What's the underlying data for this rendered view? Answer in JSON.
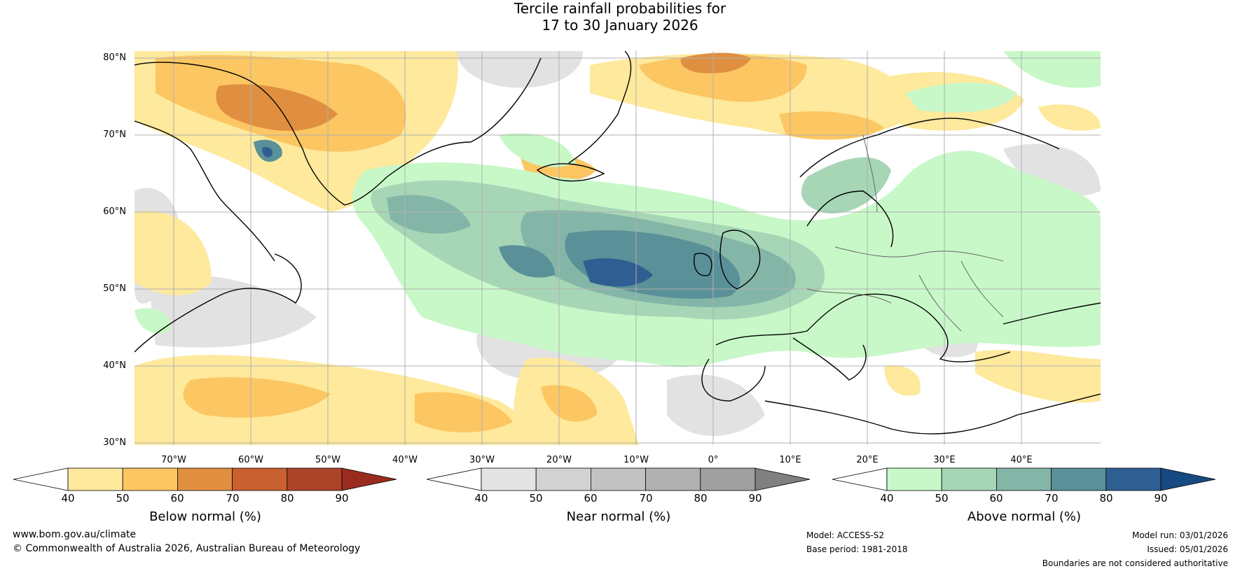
{
  "title": {
    "line1": "Tercile rainfall probabilities for",
    "line2": "17 to 30 January 2026"
  },
  "map": {
    "lat_labels": [
      "80°N",
      "70°N",
      "60°N",
      "50°N",
      "40°N",
      "30°N"
    ],
    "lon_labels": [
      "70°W",
      "60°W",
      "50°W",
      "40°W",
      "30°W",
      "20°W",
      "10°W",
      "0°",
      "10°E",
      "20°E",
      "30°E",
      "40°E"
    ]
  },
  "colorbars": [
    {
      "label": "Below normal (%)",
      "ticks": [
        "40",
        "50",
        "60",
        "70",
        "80",
        "90"
      ],
      "colors": [
        "#ffffff",
        "#fee99c",
        "#fcc662",
        "#e08f40",
        "#c8602f",
        "#ab4428",
        "#992c1e"
      ]
    },
    {
      "label": "Near normal (%)",
      "ticks": [
        "40",
        "50",
        "60",
        "70",
        "80",
        "90"
      ],
      "colors": [
        "#ffffff",
        "#e4e4e4",
        "#d2d2d2",
        "#c2c2c2",
        "#b1b1b1",
        "#a0a0a0",
        "#808080"
      ]
    },
    {
      "label": "Above normal (%)",
      "ticks": [
        "40",
        "50",
        "60",
        "70",
        "80",
        "90"
      ],
      "colors": [
        "#ffffff",
        "#c8f8c8",
        "#a6d6b6",
        "#84b6a8",
        "#5a9198",
        "#2f5f92",
        "#174a80"
      ]
    }
  ],
  "footer": {
    "url": "www.bom.gov.au/climate",
    "copyright": "© Commonwealth of Australia 2026, Australian Bureau of Meteorology",
    "model": "Model: ACCESS-S2",
    "base_period": "Base period: 1981-2018",
    "model_run": "Model run: 03/01/2026",
    "issued": "Issued: 05/01/2026",
    "disclaimer": "Boundaries are not considered authoritative"
  }
}
